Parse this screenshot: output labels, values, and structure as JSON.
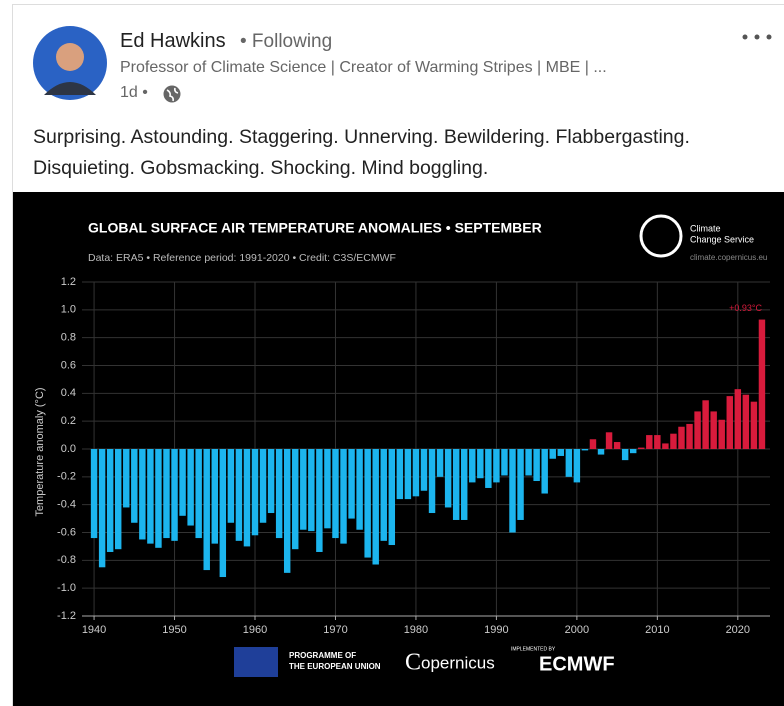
{
  "post": {
    "author": "Ed Hawkins",
    "follow_status": "• Following",
    "headline": "Professor of Climate Science | Creator of Warming Stripes | MBE | ...",
    "age": "1d •",
    "text": "Surprising. Astounding. Staggering. Unnerving. Bewildering. Flabbergasting. Disquieting. Gobsmacking. Shocking. Mind boggling."
  },
  "chart_data": {
    "type": "bar",
    "title": "GLOBAL SURFACE AIR TEMPERATURE ANOMALIES • SEPTEMBER",
    "subtitle": "Data: ERA5 • Reference period: 1991-2020 • Credit: C3S/ECMWF",
    "y_label": "Temperature anomaly (°C)",
    "x": [
      1940,
      1941,
      1942,
      1943,
      1944,
      1945,
      1946,
      1947,
      1948,
      1949,
      1950,
      1951,
      1952,
      1953,
      1954,
      1955,
      1956,
      1957,
      1958,
      1959,
      1960,
      1961,
      1962,
      1963,
      1964,
      1965,
      1966,
      1967,
      1968,
      1969,
      1970,
      1971,
      1972,
      1973,
      1974,
      1975,
      1976,
      1977,
      1978,
      1979,
      1980,
      1981,
      1982,
      1983,
      1984,
      1985,
      1986,
      1987,
      1988,
      1989,
      1990,
      1991,
      1992,
      1993,
      1994,
      1995,
      1996,
      1997,
      1998,
      1999,
      2000,
      2001,
      2002,
      2003,
      2004,
      2005,
      2006,
      2007,
      2008,
      2009,
      2010,
      2011,
      2012,
      2013,
      2014,
      2015,
      2016,
      2017,
      2018,
      2019,
      2020,
      2021,
      2022,
      2023
    ],
    "values": [
      -0.64,
      -0.85,
      -0.74,
      -0.72,
      -0.42,
      -0.53,
      -0.65,
      -0.68,
      -0.71,
      -0.64,
      -0.66,
      -0.48,
      -0.55,
      -0.64,
      -0.87,
      -0.68,
      -0.92,
      -0.53,
      -0.66,
      -0.7,
      -0.62,
      -0.53,
      -0.46,
      -0.64,
      -0.89,
      -0.72,
      -0.58,
      -0.59,
      -0.74,
      -0.57,
      -0.64,
      -0.68,
      -0.5,
      -0.58,
      -0.78,
      -0.83,
      -0.66,
      -0.69,
      -0.36,
      -0.36,
      -0.34,
      -0.3,
      -0.46,
      -0.2,
      -0.42,
      -0.51,
      -0.51,
      -0.24,
      -0.21,
      -0.28,
      -0.24,
      -0.19,
      -0.6,
      -0.51,
      -0.19,
      -0.23,
      -0.32,
      -0.07,
      -0.05,
      -0.2,
      -0.24,
      -0.01,
      0.07,
      -0.04,
      0.12,
      0.05,
      -0.08,
      -0.03,
      0.01,
      0.1,
      0.1,
      0.04,
      0.11,
      0.16,
      0.18,
      0.27,
      0.35,
      0.27,
      0.21,
      0.38,
      0.43,
      0.39,
      0.34,
      0.93
    ],
    "value_labels": [
      null,
      null,
      null,
      null,
      null,
      null,
      null,
      null,
      null,
      null,
      null,
      null,
      null,
      null,
      null,
      null,
      null,
      null,
      null,
      null,
      null,
      null,
      null,
      null,
      null,
      null,
      null,
      null,
      null,
      null,
      null,
      null,
      null,
      null,
      null,
      null,
      null,
      null,
      null,
      null,
      null,
      null,
      null,
      null,
      null,
      null,
      null,
      null,
      null,
      null,
      null,
      null,
      null,
      null,
      null,
      null,
      null,
      null,
      null,
      null,
      null,
      null,
      null,
      null,
      null,
      null,
      null,
      null,
      null,
      null,
      null,
      null,
      null,
      null,
      null,
      null,
      null,
      null,
      null,
      null,
      null,
      null,
      null,
      "+0.93°C"
    ],
    "color_negative": "#1cb5ee",
    "color_positive": "#d81b3c",
    "xlim": [
      1938.5,
      2024
    ],
    "xticks": [
      1940,
      1950,
      1960,
      1970,
      1980,
      1990,
      2000,
      2010,
      2020
    ],
    "ylim": [
      -1.2,
      1.2
    ],
    "yticks": [
      {
        "value": -1.2,
        "label": "-1.2"
      },
      {
        "value": -1,
        "label": "-1.0"
      },
      {
        "value": -0.8,
        "label": "-0.8"
      },
      {
        "value": -0.6,
        "label": "-0.6"
      },
      {
        "value": -0.4,
        "label": "-0.4"
      },
      {
        "value": -0.2,
        "label": "-0.2"
      },
      {
        "value": 0,
        "label": "0.0"
      },
      0.2,
      0.4,
      0.6,
      0.8,
      {
        "value": 1,
        "label": "1.0"
      },
      1.2
    ],
    "grid": true,
    "logo": {
      "name": [
        "Climate",
        "Change Service"
      ],
      "url": "climate.copernicus.eu"
    },
    "footer": {
      "eu": [
        "PROGRAMME OF",
        "THE EUROPEAN UNION"
      ],
      "copernicus": "opernicus",
      "implemented": "IMPLEMENTED BY",
      "ecmwf": "ECMWF"
    }
  }
}
